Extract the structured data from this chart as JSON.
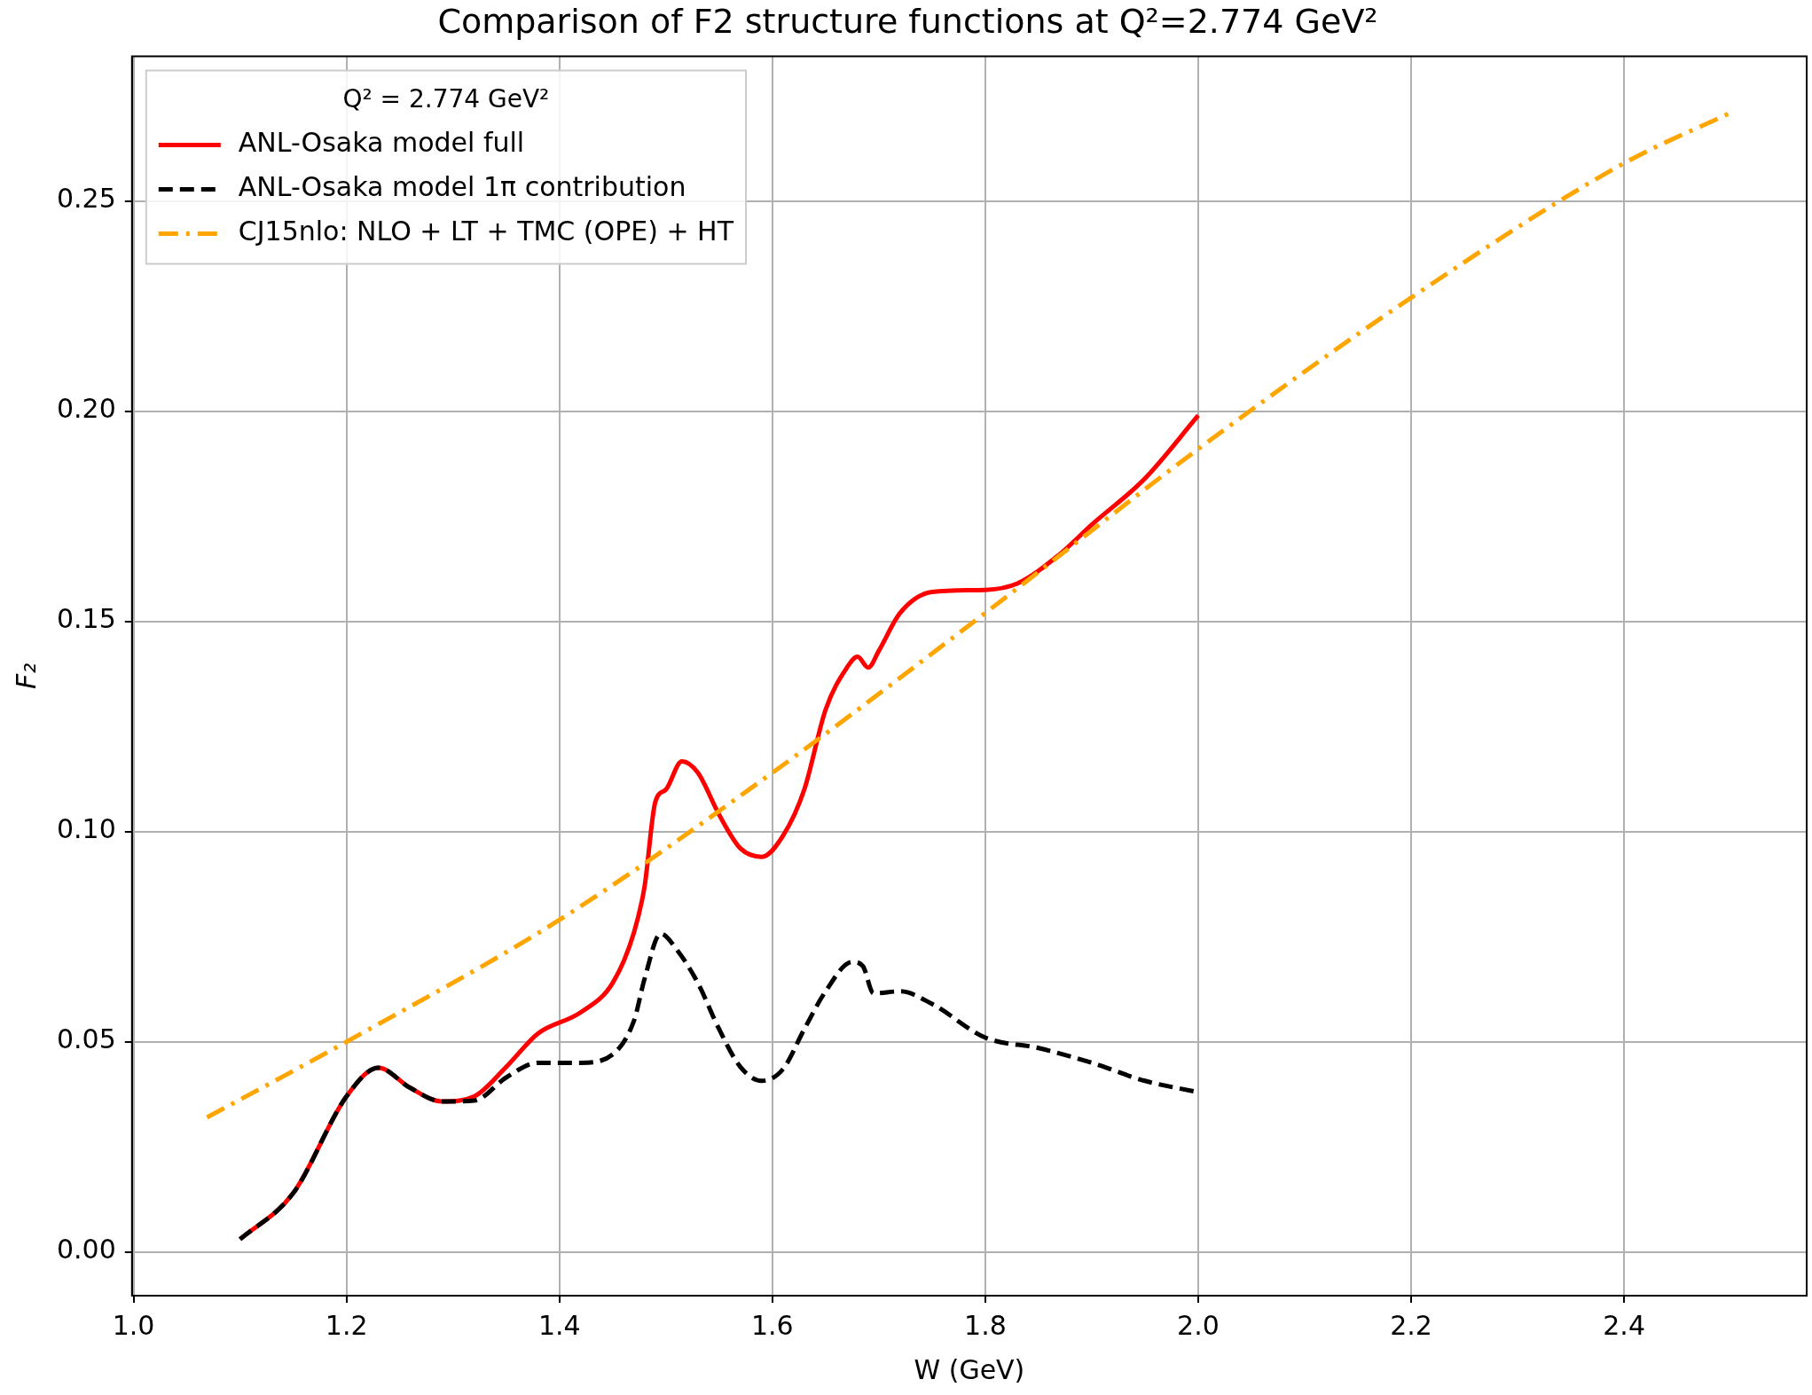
{
  "chart_data": {
    "type": "line",
    "title": "Comparison of F2 structure functions at Q²=2.774 GeV²",
    "xlabel": "W (GeV)",
    "ylabel": "F₂",
    "legend_title": "Q² = 2.774 GeV²",
    "legend": "top left",
    "grid": true,
    "marker": "none",
    "xlim": [
      0.9985,
      2.5715
    ],
    "ylim": [
      -0.0104,
      0.2844
    ],
    "xticks": [
      {
        "value": 1,
        "label": "1.0"
      },
      {
        "value": 1.2,
        "label": "1.2"
      },
      {
        "value": 1.4,
        "label": "1.4"
      },
      {
        "value": 1.6,
        "label": "1.6"
      },
      {
        "value": 1.8,
        "label": "1.8"
      },
      {
        "value": 2,
        "label": "2.0"
      },
      {
        "value": 2.2,
        "label": "2.2"
      },
      {
        "value": 2.4,
        "label": "2.4"
      }
    ],
    "yticks": [
      {
        "value": 0,
        "label": "0.00"
      },
      {
        "value": 0.05,
        "label": "0.05"
      },
      {
        "value": 0.1,
        "label": "0.10"
      },
      {
        "value": 0.15,
        "label": "0.15"
      },
      {
        "value": 0.2,
        "label": "0.20"
      },
      {
        "value": 0.25,
        "label": "0.25"
      }
    ],
    "series": [
      {
        "name": "ANL-Osaka model full",
        "color": "#ff0000",
        "line_style": "solid",
        "x": [
          1.1,
          1.15,
          1.2,
          1.23,
          1.26,
          1.29,
          1.32,
          1.35,
          1.38,
          1.42,
          1.45,
          1.47,
          1.48,
          1.49,
          1.5,
          1.515,
          1.53,
          1.55,
          1.57,
          1.59,
          1.61,
          1.63,
          1.65,
          1.67,
          1.68,
          1.69,
          1.7,
          1.72,
          1.75,
          1.8,
          1.83,
          1.87,
          1.9,
          1.95,
          2.0
        ],
        "values": [
          0.003,
          0.014,
          0.037,
          0.0438,
          0.039,
          0.0358,
          0.037,
          0.044,
          0.052,
          0.057,
          0.064,
          0.076,
          0.087,
          0.107,
          0.11,
          0.1167,
          0.114,
          0.104,
          0.096,
          0.094,
          0.099,
          0.11,
          0.129,
          0.139,
          0.1416,
          0.139,
          0.143,
          0.152,
          0.157,
          0.1575,
          0.159,
          0.166,
          0.173,
          0.184,
          0.199
        ]
      },
      {
        "name": "ANL-Osaka model 1π contribution",
        "color": "#000000",
        "line_style": "dashed",
        "x": [
          1.1,
          1.15,
          1.2,
          1.23,
          1.26,
          1.29,
          1.32,
          1.35,
          1.38,
          1.42,
          1.45,
          1.47,
          1.48,
          1.495,
          1.51,
          1.53,
          1.55,
          1.57,
          1.59,
          1.61,
          1.63,
          1.65,
          1.675,
          1.685,
          1.695,
          1.72,
          1.75,
          1.8,
          1.85,
          1.9,
          1.95,
          2.0
        ],
        "values": [
          0.003,
          0.014,
          0.037,
          0.0438,
          0.039,
          0.0358,
          0.036,
          0.0415,
          0.045,
          0.045,
          0.047,
          0.055,
          0.065,
          0.0757,
          0.072,
          0.064,
          0.053,
          0.044,
          0.0407,
          0.0435,
          0.053,
          0.062,
          0.069,
          0.068,
          0.0615,
          0.062,
          0.059,
          0.051,
          0.0485,
          0.045,
          0.0407,
          0.038
        ]
      },
      {
        "name": "CJ15nlo: NLO + LT + TMC (OPE) + HT",
        "color": "#ffa500",
        "line_style": "dashdot",
        "x": [
          1.069,
          1.2,
          1.4,
          1.6,
          1.8,
          2.0,
          2.2,
          2.4,
          2.5
        ],
        "values": [
          0.032,
          0.05,
          0.079,
          0.114,
          0.152,
          0.191,
          0.227,
          0.259,
          0.271
        ]
      }
    ]
  }
}
